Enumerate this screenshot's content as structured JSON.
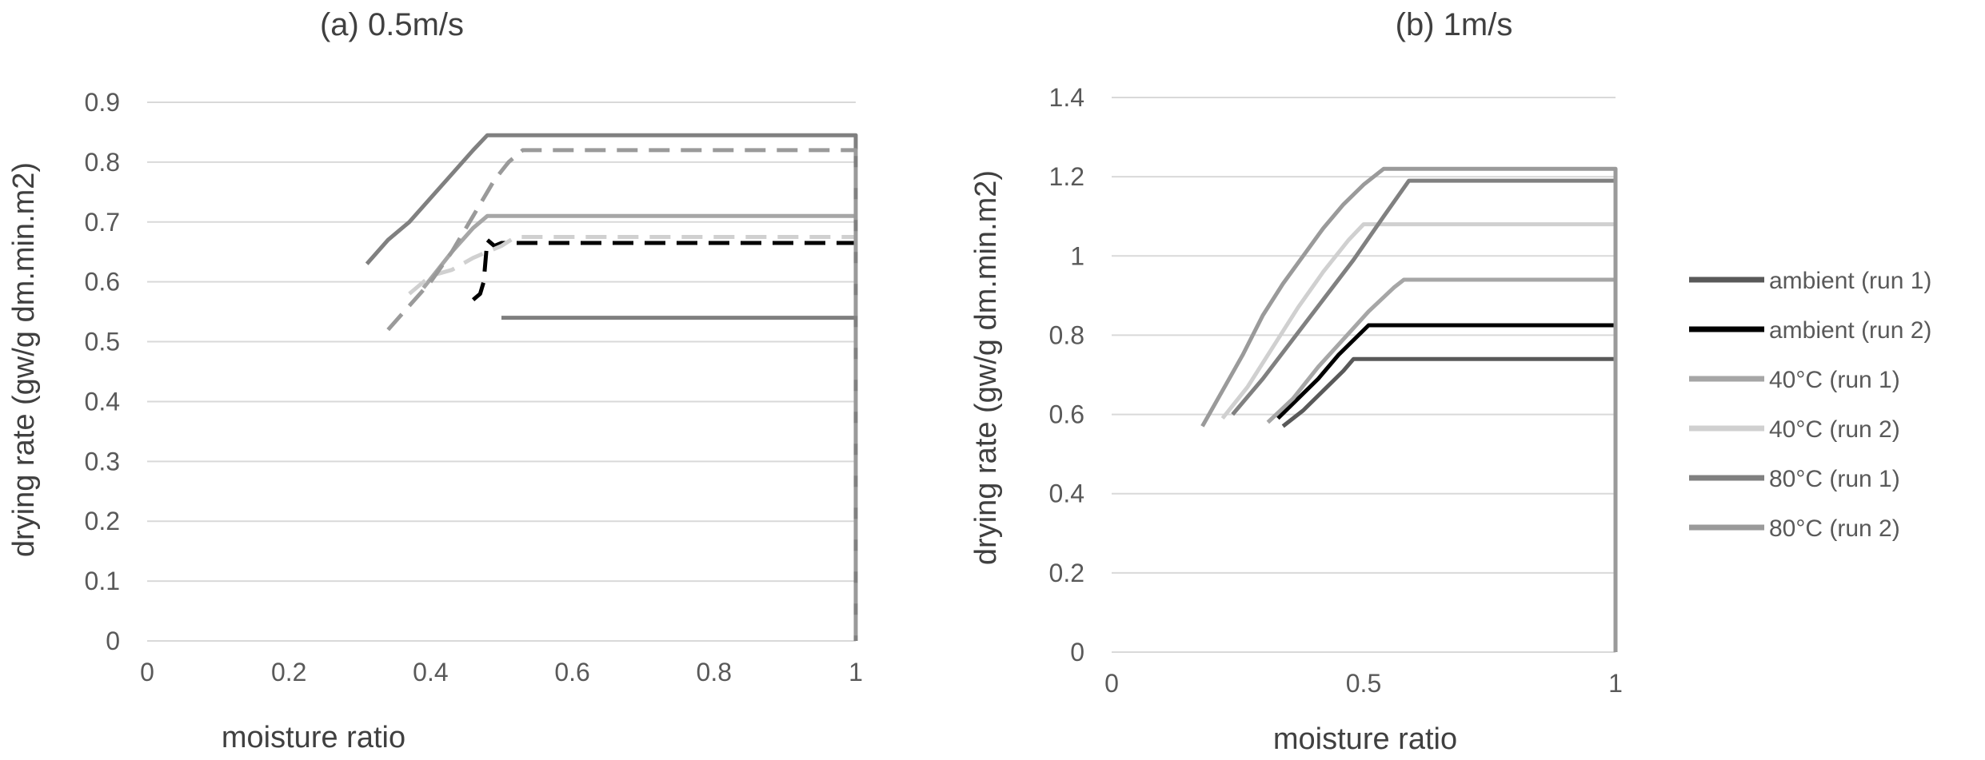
{
  "chart_data": [
    {
      "type": "line",
      "title": "(a) 0.5m/s",
      "xlabel": "moisture ratio",
      "ylabel": "drying rate (gw/g dm.min.m2)",
      "xlim": [
        0,
        1
      ],
      "ylim": [
        0,
        0.9
      ],
      "xticks": [
        0,
        0.2,
        0.4,
        0.6,
        0.8,
        1
      ],
      "xtick_labels": [
        "0",
        "0.2",
        "0.4",
        "0.6",
        "0.8",
        "1"
      ],
      "yticks": [
        0,
        0.1,
        0.2,
        0.3,
        0.4,
        0.5,
        0.6,
        0.7,
        0.8,
        0.9
      ],
      "ytick_labels": [
        "0",
        "0.1",
        "0.2",
        "0.3",
        "0.4",
        "0.5",
        "0.6",
        "0.7",
        "0.8",
        "0.9"
      ],
      "grid": "horizontal",
      "series": [
        {
          "color": "#7f7f7f",
          "dash": false,
          "width": 5,
          "points": [
            [
              0.5,
              0.54
            ],
            [
              1.0,
              0.54
            ],
            [
              1.0,
              0.0
            ]
          ]
        },
        {
          "color": "#000000",
          "dash": true,
          "width": 5,
          "points": [
            [
              0.46,
              0.57
            ],
            [
              0.47,
              0.58
            ],
            [
              0.475,
              0.6
            ],
            [
              0.48,
              0.67
            ],
            [
              0.49,
              0.66
            ],
            [
              0.5,
              0.665
            ],
            [
              1.0,
              0.665
            ],
            [
              1.0,
              0.0
            ]
          ]
        },
        {
          "color": "#a6a6a6",
          "dash": false,
          "width": 5,
          "points": [
            [
              0.39,
              0.59
            ],
            [
              0.41,
              0.62
            ],
            [
              0.43,
              0.65
            ],
            [
              0.46,
              0.69
            ],
            [
              0.48,
              0.71
            ],
            [
              1.0,
              0.71
            ],
            [
              1.0,
              0.0
            ]
          ]
        },
        {
          "color": "#d0d0d0",
          "dash": true,
          "width": 5,
          "points": [
            [
              0.37,
              0.58
            ],
            [
              0.4,
              0.61
            ],
            [
              0.43,
              0.62
            ],
            [
              0.46,
              0.64
            ],
            [
              0.5,
              0.66
            ],
            [
              0.52,
              0.675
            ],
            [
              1.0,
              0.675
            ],
            [
              1.0,
              0.0
            ]
          ]
        },
        {
          "color": "#808080",
          "dash": false,
          "width": 5,
          "points": [
            [
              0.31,
              0.63
            ],
            [
              0.34,
              0.67
            ],
            [
              0.37,
              0.7
            ],
            [
              0.4,
              0.74
            ],
            [
              0.43,
              0.78
            ],
            [
              0.46,
              0.82
            ],
            [
              0.48,
              0.845
            ],
            [
              1.0,
              0.845
            ],
            [
              1.0,
              0.0
            ]
          ]
        },
        {
          "color": "#9a9a9a",
          "dash": true,
          "width": 5,
          "points": [
            [
              0.34,
              0.52
            ],
            [
              0.37,
              0.56
            ],
            [
              0.4,
              0.6
            ],
            [
              0.43,
              0.65
            ],
            [
              0.46,
              0.71
            ],
            [
              0.49,
              0.77
            ],
            [
              0.51,
              0.8
            ],
            [
              0.53,
              0.82
            ],
            [
              1.0,
              0.82
            ],
            [
              1.0,
              0.0
            ]
          ]
        }
      ]
    },
    {
      "type": "line",
      "title": "(b) 1m/s",
      "xlabel": "moisture ratio",
      "ylabel": "drying rate (gw/g dm.min.m2)",
      "xlim": [
        0,
        1
      ],
      "ylim": [
        0,
        1.4
      ],
      "xticks": [
        0,
        0.5,
        1
      ],
      "xtick_labels": [
        "0",
        "0.5",
        "1"
      ],
      "yticks": [
        0,
        0.2,
        0.4,
        0.6,
        0.8,
        1.0,
        1.2,
        1.4
      ],
      "ytick_labels": [
        "0",
        "0.2",
        "0.4",
        "0.6",
        "0.8",
        "1",
        "1.2",
        "1.4"
      ],
      "grid": "horizontal",
      "legend": "right",
      "series": [
        {
          "name": "ambient (run 1)",
          "color": "#595959",
          "dash": false,
          "width": 5,
          "points": [
            [
              0.34,
              0.57
            ],
            [
              0.38,
              0.61
            ],
            [
              0.42,
              0.66
            ],
            [
              0.46,
              0.71
            ],
            [
              0.48,
              0.74
            ],
            [
              1.0,
              0.74
            ],
            [
              1.0,
              0.0
            ]
          ]
        },
        {
          "name": "ambient (run 2)",
          "color": "#000000",
          "dash": false,
          "width": 5,
          "points": [
            [
              0.33,
              0.59
            ],
            [
              0.37,
              0.64
            ],
            [
              0.41,
              0.69
            ],
            [
              0.45,
              0.75
            ],
            [
              0.49,
              0.8
            ],
            [
              0.51,
              0.825
            ],
            [
              1.0,
              0.825
            ],
            [
              1.0,
              0.0
            ]
          ]
        },
        {
          "name": "40°C (run 1)",
          "color": "#a6a6a6",
          "dash": false,
          "width": 5,
          "points": [
            [
              0.31,
              0.58
            ],
            [
              0.36,
              0.64
            ],
            [
              0.41,
              0.72
            ],
            [
              0.46,
              0.79
            ],
            [
              0.51,
              0.86
            ],
            [
              0.56,
              0.92
            ],
            [
              0.58,
              0.94
            ],
            [
              1.0,
              0.94
            ],
            [
              1.0,
              0.0
            ]
          ]
        },
        {
          "name": "40°C (run 2)",
          "color": "#d0d0d0",
          "dash": false,
          "width": 5,
          "points": [
            [
              0.22,
              0.59
            ],
            [
              0.27,
              0.67
            ],
            [
              0.32,
              0.77
            ],
            [
              0.37,
              0.87
            ],
            [
              0.42,
              0.96
            ],
            [
              0.47,
              1.04
            ],
            [
              0.5,
              1.08
            ],
            [
              1.0,
              1.08
            ],
            [
              1.0,
              0.0
            ]
          ]
        },
        {
          "name": "80°C (run 1)",
          "color": "#808080",
          "dash": false,
          "width": 5,
          "points": [
            [
              0.24,
              0.6
            ],
            [
              0.3,
              0.69
            ],
            [
              0.36,
              0.79
            ],
            [
              0.42,
              0.89
            ],
            [
              0.48,
              0.99
            ],
            [
              0.54,
              1.1
            ],
            [
              0.59,
              1.19
            ],
            [
              1.0,
              1.19
            ],
            [
              1.0,
              0.0
            ]
          ]
        },
        {
          "name": "80°C (run 2)",
          "color": "#9a9a9a",
          "dash": false,
          "width": 5,
          "points": [
            [
              0.18,
              0.57
            ],
            [
              0.22,
              0.66
            ],
            [
              0.26,
              0.75
            ],
            [
              0.3,
              0.85
            ],
            [
              0.34,
              0.93
            ],
            [
              0.38,
              1.0
            ],
            [
              0.42,
              1.07
            ],
            [
              0.46,
              1.13
            ],
            [
              0.5,
              1.18
            ],
            [
              0.54,
              1.22
            ],
            [
              1.0,
              1.22
            ],
            [
              1.0,
              0.0
            ]
          ]
        }
      ]
    }
  ]
}
